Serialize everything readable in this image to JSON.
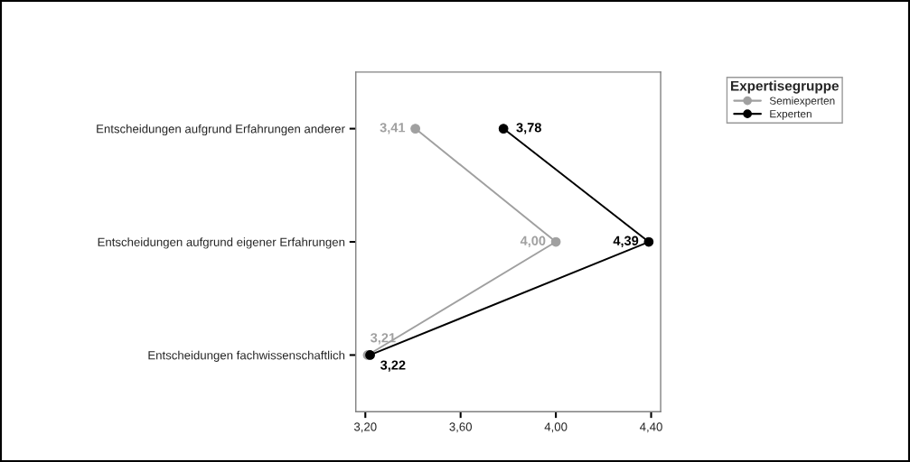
{
  "chart_data": {
    "type": "line",
    "orientation": "horizontal",
    "legend_title": "Expertisegruppe",
    "legend": "top right",
    "marker": "circle",
    "grid": false,
    "categories": [
      "Entscheidungen aufgrund Erfahrungen anderer",
      "Entscheidungen aufgrund eigener Erfahrungen",
      "Entscheidungen fachwissenschaftlich"
    ],
    "xlim": [
      3.16,
      4.44
    ],
    "xticks": [
      {
        "value": 3.2,
        "label": "3,20"
      },
      {
        "value": 3.6,
        "label": "3,60"
      },
      {
        "value": 4.0,
        "label": "4,00"
      },
      {
        "value": 4.4,
        "label": "4,40"
      }
    ],
    "series": [
      {
        "name": "Semiexperten",
        "color": "#a0a0a0",
        "values": [
          3.41,
          4.0,
          3.21
        ],
        "value_labels": [
          "3,41",
          "4,00",
          "3,21"
        ]
      },
      {
        "name": "Experten",
        "color": "#000000",
        "values": [
          3.78,
          4.39,
          3.22
        ],
        "value_labels": [
          "3,78",
          "4,39",
          "3,22"
        ]
      }
    ]
  }
}
